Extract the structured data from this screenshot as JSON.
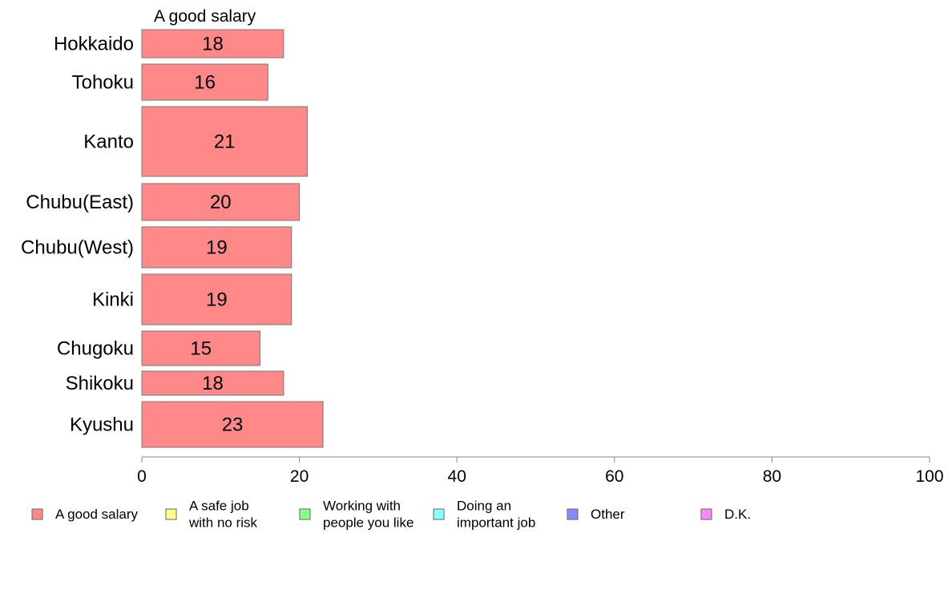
{
  "chart_data": {
    "type": "bar",
    "orientation": "horizontal",
    "title": "A good salary",
    "categories": [
      "Hokkaido",
      "Tohoku",
      "Kanto",
      "Chubu(East)",
      "Chubu(West)",
      "Kinki",
      "Chugoku",
      "Shikoku",
      "Kyushu"
    ],
    "series": [
      {
        "name": "A good salary",
        "color": "#ff8888",
        "values": [
          18,
          16,
          21,
          20,
          19,
          19,
          15,
          18,
          23
        ]
      }
    ],
    "xlim": [
      0,
      100
    ],
    "x_ticks": [
      0,
      20,
      40,
      60,
      80,
      100
    ],
    "grid": false,
    "legend_position": "bottom",
    "legend": [
      {
        "label": [
          "A good salary"
        ],
        "color": "#ff8888"
      },
      {
        "label": [
          "A safe job",
          "with no risk"
        ],
        "color": "#ffff88"
      },
      {
        "label": [
          "Working with",
          "people you like"
        ],
        "color": "#88ff88"
      },
      {
        "label": [
          "Doing an",
          "important job"
        ],
        "color": "#88ffff"
      },
      {
        "label": [
          "Other"
        ],
        "color": "#8888ff"
      },
      {
        "label": [
          "D.K."
        ],
        "color": "#ff88ff"
      }
    ]
  }
}
